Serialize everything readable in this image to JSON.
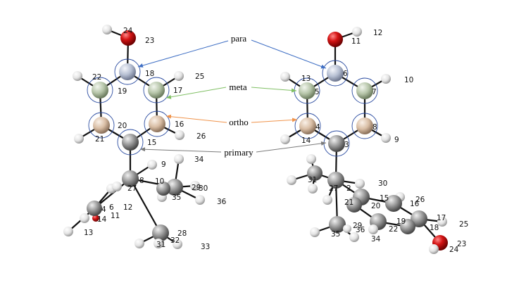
{
  "annotations": {
    "para": "para",
    "meta": "meta",
    "ortho": "ortho",
    "primary": "primary"
  },
  "colors": {
    "para_arrow": "#3f6fc4",
    "meta_arrow": "#7fbf63",
    "ortho_arrow": "#f0934a",
    "primary_arrow": "#7a7a7a",
    "oxygen": "#cc1111",
    "para_atom": "#b9c3d6",
    "meta_atom": "#b8c7ad",
    "ortho_atom": "#d8bea6",
    "carbon": "#9a9a9a",
    "hydrogen": "#f0f0f0"
  },
  "left_molecule": {
    "labels": [
      "24",
      "23",
      "18",
      "25",
      "22",
      "17",
      "19",
      "20",
      "16",
      "21",
      "26",
      "15",
      "34",
      "9",
      "29",
      "30",
      "8",
      "10",
      "27",
      "35",
      "36",
      "4",
      "6",
      "12",
      "14",
      "11",
      "13",
      "28",
      "31",
      "32",
      "33"
    ]
  },
  "right_molecule": {
    "labels": [
      "11",
      "12",
      "6",
      "10",
      "13",
      "5",
      "7",
      "4",
      "8",
      "14",
      "3",
      "9",
      "31",
      "27",
      "2",
      "30",
      "15",
      "26",
      "21",
      "20",
      "19",
      "17",
      "25",
      "16",
      "18",
      "22",
      "29",
      "36",
      "35",
      "34",
      "23",
      "24"
    ]
  }
}
